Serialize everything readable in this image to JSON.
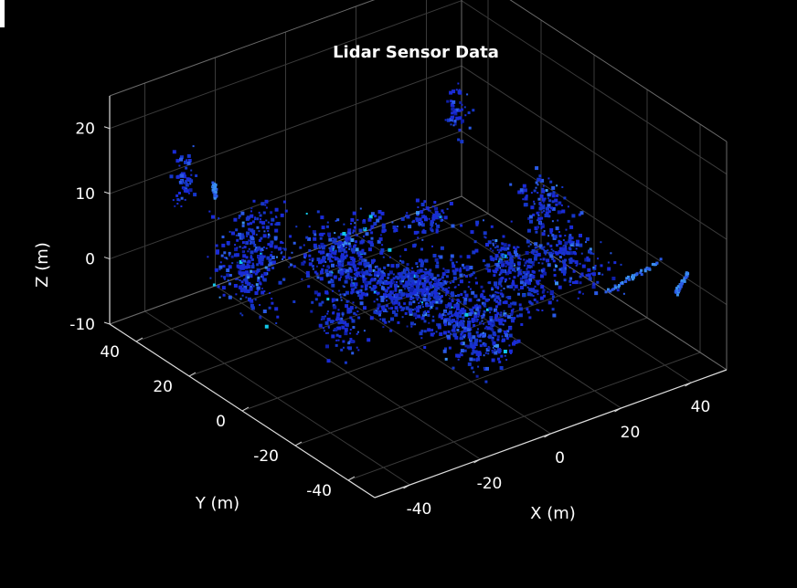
{
  "chart_data": {
    "type": "scatter",
    "title": "Lidar Sensor Data",
    "xlabel": "X (m)",
    "ylabel": "Y (m)",
    "zlabel": "Z (m)",
    "xlim": [
      -50,
      50
    ],
    "ylim": [
      -50,
      50
    ],
    "zlim": [
      -10,
      25
    ],
    "xticks": [
      "-40",
      "-20",
      "0",
      "20",
      "40"
    ],
    "yticks": [
      "-40",
      "-20",
      "0",
      "20",
      "40"
    ],
    "zticks": [
      "-10",
      "0",
      "10",
      "20"
    ],
    "grid": true,
    "background": "#000000",
    "point_colors": [
      "#1a2bd6",
      "#1636c8",
      "#2a5ae6",
      "#0f1fa8",
      "#3a8ef0",
      "#12c8e8"
    ],
    "clusters": [
      {
        "x": 0,
        "y": 0,
        "z": -1,
        "sx": 9,
        "sy": 8,
        "sz": 2,
        "n": 520
      },
      {
        "x": 2,
        "y": -20,
        "z": 0,
        "sx": 10,
        "sy": 3,
        "sz": 3,
        "n": 260
      },
      {
        "x": 22,
        "y": -8,
        "z": 0,
        "sx": 3,
        "sy": 10,
        "sz": 3,
        "n": 230
      },
      {
        "x": -12,
        "y": 8,
        "z": 1,
        "sx": 5,
        "sy": 9,
        "sz": 3,
        "n": 240
      },
      {
        "x": -2,
        "y": 24,
        "z": 0,
        "sx": 12,
        "sy": 3,
        "sz": 3,
        "n": 200
      },
      {
        "x": -32,
        "y": 22,
        "z": 2,
        "sx": 3,
        "sy": 8,
        "sz": 4,
        "n": 170
      },
      {
        "x": -22,
        "y": 30,
        "z": 3,
        "sx": 5,
        "sy": 4,
        "sz": 4,
        "n": 150
      },
      {
        "x": 34,
        "y": -12,
        "z": 1,
        "sx": 4,
        "sy": 10,
        "sz": 3,
        "n": 180
      },
      {
        "x": 40,
        "y": 6,
        "z": 3,
        "sx": 3,
        "sy": 5,
        "sz": 2,
        "n": 90
      },
      {
        "x": -8,
        "y": -36,
        "z": 2,
        "sx": 6,
        "sy": 3,
        "sz": 3,
        "n": 150
      },
      {
        "x": -28,
        "y": -8,
        "z": 1,
        "sx": 3,
        "sy": 5,
        "sz": 3,
        "n": 90
      },
      {
        "x": 18,
        "y": 20,
        "z": 1,
        "sx": 4,
        "sy": 3,
        "sz": 2,
        "n": 80
      },
      {
        "x": -36,
        "y": 40,
        "z": 12,
        "sx": 2,
        "sy": 2,
        "sz": 3,
        "n": 60
      },
      {
        "x": 45,
        "y": 45,
        "z": 6,
        "sx": 2,
        "sy": 2,
        "sz": 3,
        "n": 50
      }
    ],
    "line_features": [
      {
        "x0": 28,
        "y0": -34,
        "x1": 46,
        "y1": -30,
        "z": 2
      },
      {
        "x0": 40,
        "y0": -44,
        "x1": 48,
        "y1": -38,
        "z": 2
      },
      {
        "x0": -32,
        "y0": 34,
        "x1": -28,
        "y1": 40,
        "z": 10
      }
    ]
  }
}
